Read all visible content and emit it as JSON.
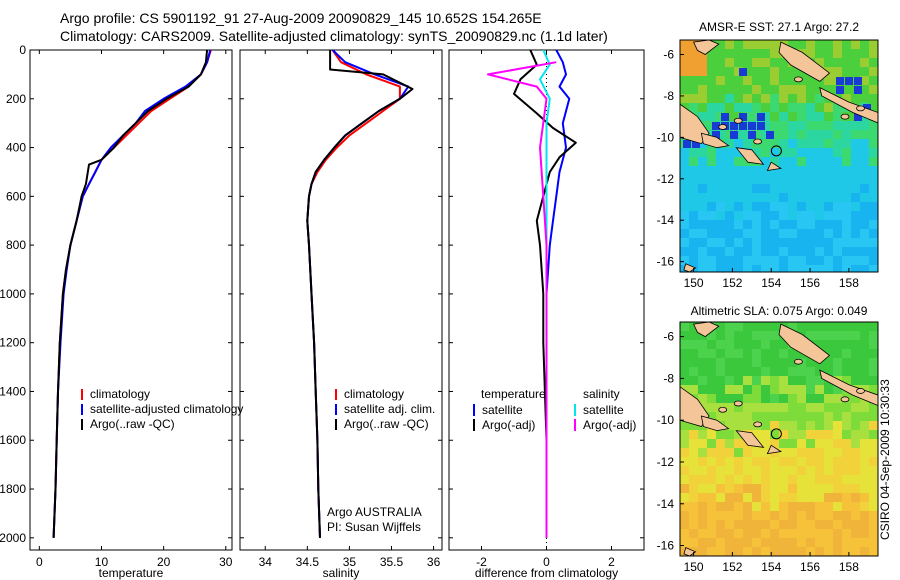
{
  "header": {
    "line1": "Argo profile: CS 5901192_91 27-Aug-2009 20090829_145 10.652S 154.265E",
    "line2": "Climatology: CARS2009. Satellite-adjusted climatology: synTS_20090829.nc (1.1d later)"
  },
  "credit": "CSIRO 04-Sep-2009 10:30:33",
  "colors": {
    "red": "#ff0000",
    "blue": "#0000ff",
    "black": "#000000",
    "cyan": "#00e5ee",
    "magenta": "#ff00ff"
  },
  "chart_data": [
    {
      "type": "line",
      "xlabel": "temperature",
      "ylabel": "",
      "xlim": [
        -1.5,
        31
      ],
      "ylim": [
        2050,
        0
      ],
      "xticks": [
        0,
        10,
        20,
        30
      ],
      "yticks": [
        0,
        200,
        400,
        600,
        800,
        1000,
        1200,
        1400,
        1600,
        1800,
        2000
      ],
      "legend": [
        "climatology",
        "satellite-adjusted climatology",
        "Argo(..raw -QC)"
      ],
      "series": [
        {
          "name": "climatology",
          "color": "red",
          "x": [
            27.6,
            27.0,
            26.0,
            24.0,
            21.0,
            18.0,
            16.0,
            14.0,
            12.0,
            10.0,
            9.0,
            8.0,
            7.0,
            6.0,
            5.0,
            4.3,
            3.8,
            3.3,
            3.0,
            2.8,
            2.6,
            2.3
          ],
          "y": [
            0,
            50,
            100,
            150,
            200,
            250,
            300,
            350,
            400,
            450,
            500,
            550,
            600,
            700,
            800,
            900,
            1000,
            1200,
            1400,
            1600,
            1800,
            2000
          ]
        },
        {
          "name": "satellite-adjusted climatology",
          "color": "blue",
          "x": [
            27.5,
            27.0,
            26.0,
            23.5,
            20.0,
            17.0,
            15.5,
            13.5,
            11.5,
            10.0,
            9.0,
            8.0,
            7.0,
            6.0,
            5.0,
            4.4,
            3.9,
            3.4,
            3.0,
            2.8,
            2.6,
            2.3
          ],
          "y": [
            0,
            50,
            100,
            150,
            200,
            250,
            300,
            350,
            400,
            450,
            500,
            550,
            600,
            700,
            800,
            900,
            1000,
            1200,
            1400,
            1600,
            1800,
            2000
          ]
        },
        {
          "name": "Argo(..raw -QC)",
          "color": "black",
          "x": [
            27.0,
            26.8,
            26.0,
            24.0,
            20.5,
            17.5,
            15.5,
            13.5,
            12.0,
            10.0,
            8.0,
            7.5,
            6.8,
            6.0,
            5.0,
            4.3,
            3.8,
            3.3,
            3.0,
            2.8,
            2.6,
            2.3
          ],
          "y": [
            0,
            50,
            100,
            150,
            200,
            250,
            300,
            350,
            400,
            450,
            470,
            550,
            600,
            700,
            800,
            900,
            1000,
            1200,
            1400,
            1600,
            1800,
            2000
          ]
        }
      ]
    },
    {
      "type": "line",
      "xlabel": "salinity",
      "ylabel": "",
      "xlim": [
        33.7,
        36.1
      ],
      "ylim": [
        2050,
        0
      ],
      "xticks": [
        34,
        34.5,
        35,
        35.5,
        36
      ],
      "legend": [
        "climatology",
        "satellite adj. clim.",
        "Argo(..raw -QC)"
      ],
      "annotations": [
        "Argo AUSTRALIA",
        "PI: Susan Wijffels"
      ],
      "series": [
        {
          "name": "climatology",
          "color": "red",
          "x": [
            34.8,
            34.9,
            35.2,
            35.6,
            35.6,
            35.4,
            35.2,
            35.0,
            34.85,
            34.72,
            34.62,
            34.55,
            34.52,
            34.5,
            34.52,
            34.55,
            34.58,
            34.6,
            34.62,
            34.63,
            34.65
          ],
          "y": [
            0,
            50,
            100,
            150,
            200,
            250,
            300,
            350,
            400,
            450,
            500,
            550,
            600,
            700,
            800,
            1000,
            1200,
            1400,
            1600,
            1800,
            2000
          ]
        },
        {
          "name": "satellite adj. clim.",
          "color": "blue",
          "x": [
            34.8,
            34.95,
            35.3,
            35.7,
            35.6,
            35.35,
            35.15,
            34.95,
            34.82,
            34.7,
            34.6,
            34.55,
            34.52,
            34.5,
            34.52,
            34.55,
            34.58,
            34.6,
            34.62,
            34.63,
            34.65
          ],
          "y": [
            0,
            50,
            100,
            150,
            200,
            250,
            300,
            350,
            400,
            450,
            500,
            550,
            600,
            700,
            800,
            1000,
            1200,
            1400,
            1600,
            1800,
            2000
          ]
        },
        {
          "name": "Argo(..raw -QC)",
          "color": "black",
          "x": [
            34.77,
            34.77,
            35.4,
            35.75,
            35.6,
            35.35,
            35.15,
            34.95,
            34.82,
            34.7,
            34.6,
            34.55,
            34.52,
            34.5,
            34.52,
            34.55,
            34.58,
            34.6,
            34.62,
            34.63,
            34.65
          ],
          "y": [
            0,
            80,
            100,
            160,
            200,
            250,
            300,
            350,
            400,
            450,
            500,
            550,
            600,
            700,
            800,
            1000,
            1200,
            1400,
            1600,
            1800,
            2000
          ]
        }
      ]
    },
    {
      "type": "line",
      "xlabel": "difference from climatology",
      "ylabel": "",
      "xlim": [
        -3,
        3
      ],
      "ylim": [
        2050,
        0
      ],
      "xticks": [
        -2,
        0,
        2
      ],
      "legend": [
        "temperature",
        "satellite",
        "Argo(-adj)",
        "salinity",
        "satellite",
        "Argo(-adj)"
      ],
      "series": [
        {
          "name": "satellite",
          "group": "temperature",
          "color": "blue",
          "x": [
            0.3,
            0.5,
            0.6,
            0.4,
            0.7,
            0.5,
            0.6,
            0.4,
            0.3,
            0.2,
            0.1,
            0.0,
            0.0,
            0.0,
            0.0,
            0.0,
            0.0,
            0.0
          ],
          "y": [
            0,
            50,
            100,
            150,
            200,
            300,
            400,
            500,
            600,
            700,
            800,
            1000,
            1200,
            1400,
            1600,
            1800,
            1900,
            2000
          ]
        },
        {
          "name": "Argo(-adj)",
          "group": "temperature",
          "color": "black",
          "x": [
            -0.5,
            -0.3,
            -0.8,
            -1.0,
            -0.3,
            0.2,
            0.9,
            0.4,
            0.1,
            -0.1,
            -0.3,
            -0.2,
            -0.1,
            -0.1,
            -0.05,
            0.0,
            0.0,
            0.0
          ],
          "y": [
            0,
            60,
            120,
            180,
            260,
            320,
            380,
            440,
            500,
            600,
            700,
            800,
            1000,
            1200,
            1400,
            1600,
            1800,
            2000
          ]
        },
        {
          "name": "satellite",
          "group": "salinity",
          "color": "cyan",
          "x": [
            -0.1,
            0.1,
            -0.2,
            0.1,
            0.0,
            0.0,
            0.0,
            0.0,
            0.0,
            0.0
          ],
          "y": [
            0,
            60,
            120,
            200,
            300,
            500,
            800,
            1200,
            1600,
            2000
          ]
        },
        {
          "name": "Argo(-adj)",
          "group": "salinity",
          "color": "magenta",
          "x": [
            0.3,
            -1.8,
            -0.3,
            0.0,
            -0.2,
            -0.1,
            0.0,
            0.0,
            0.0
          ],
          "y": [
            50,
            100,
            150,
            200,
            400,
            600,
            800,
            1200,
            2000
          ]
        }
      ]
    },
    {
      "type": "heatmap",
      "title": "AMSR-E SST: 27.1 Argo: 27.2",
      "xticks": [
        150,
        152,
        154,
        156,
        158
      ],
      "yticks": [
        -6,
        -8,
        -10,
        -12,
        -14,
        -16
      ],
      "xlim": [
        149.3,
        159.5
      ],
      "ylim": [
        -16.5,
        -5.3
      ],
      "marker": {
        "lon": 154.265,
        "lat": -10.652
      }
    },
    {
      "type": "heatmap",
      "title": "Altimetric SLA: 0.075 Argo: 0.049",
      "xticks": [
        150,
        152,
        154,
        156,
        158
      ],
      "yticks": [
        -6,
        -8,
        -10,
        -12,
        -14,
        -16
      ],
      "xlim": [
        149.3,
        159.5
      ],
      "ylim": [
        -16.5,
        -5.3
      ],
      "marker": {
        "lon": 154.265,
        "lat": -10.652
      }
    }
  ]
}
